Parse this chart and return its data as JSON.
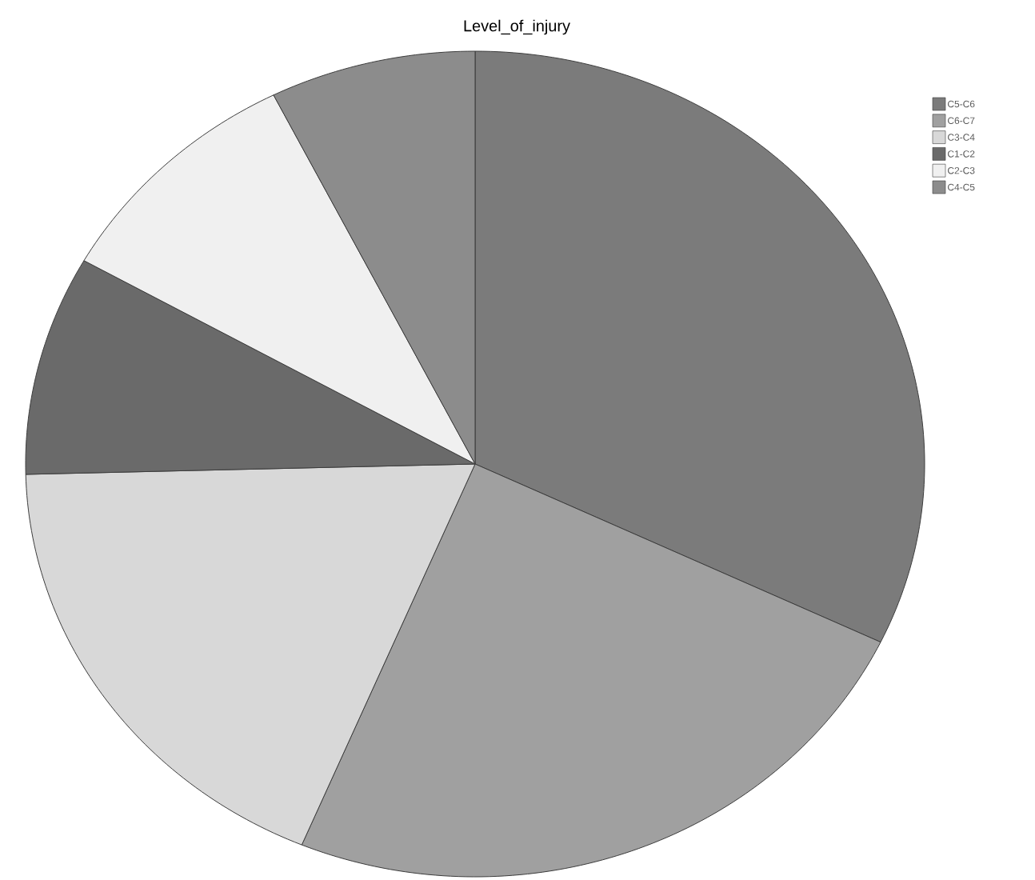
{
  "chart_data": {
    "type": "pie",
    "title": "Level_of_injury",
    "categories": [
      "C5-C6",
      "C6-C7",
      "C3-C4",
      "C1-C2",
      "C2-C3",
      "C4-C5"
    ],
    "values": [
      32.1,
      24.2,
      18.3,
      8.6,
      9.4,
      7.4
    ],
    "colors": [
      "#7b7b7b",
      "#a0a0a0",
      "#d8d8d8",
      "#6a6a6a",
      "#f0f0f0",
      "#8c8c8c"
    ],
    "legend": "top right"
  }
}
